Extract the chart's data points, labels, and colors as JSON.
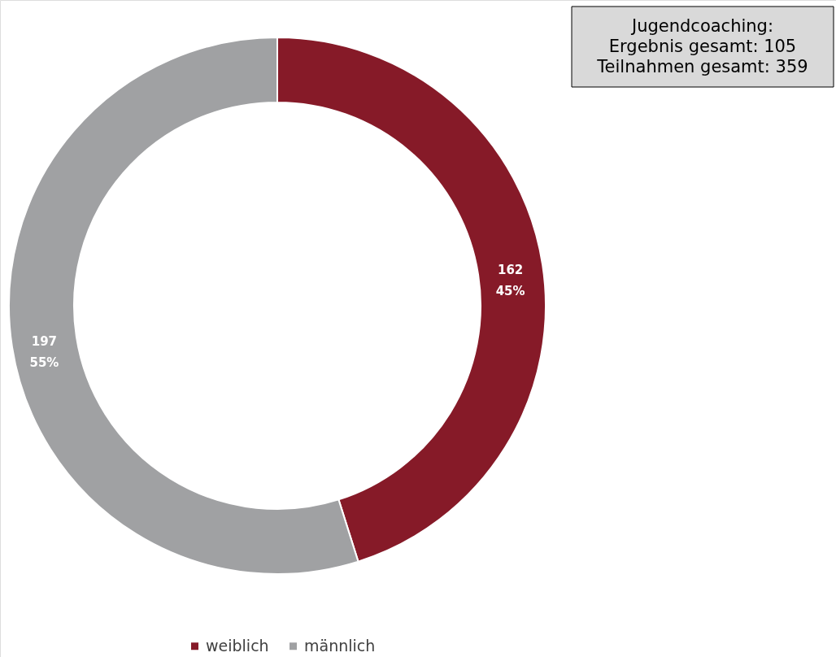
{
  "chart_data": {
    "type": "donut",
    "categories": [
      "weiblich",
      "männlich"
    ],
    "values": [
      162,
      197
    ],
    "colors": [
      "#861a28",
      "#a0a1a3"
    ],
    "value_labels": [
      "162\n45%",
      "197\n55%"
    ],
    "annotations": [
      "Jugendcoaching:",
      "Ergebnis gesamt: 105",
      "Teilnahmen gesamt: 359"
    ],
    "legend": "bottom"
  }
}
